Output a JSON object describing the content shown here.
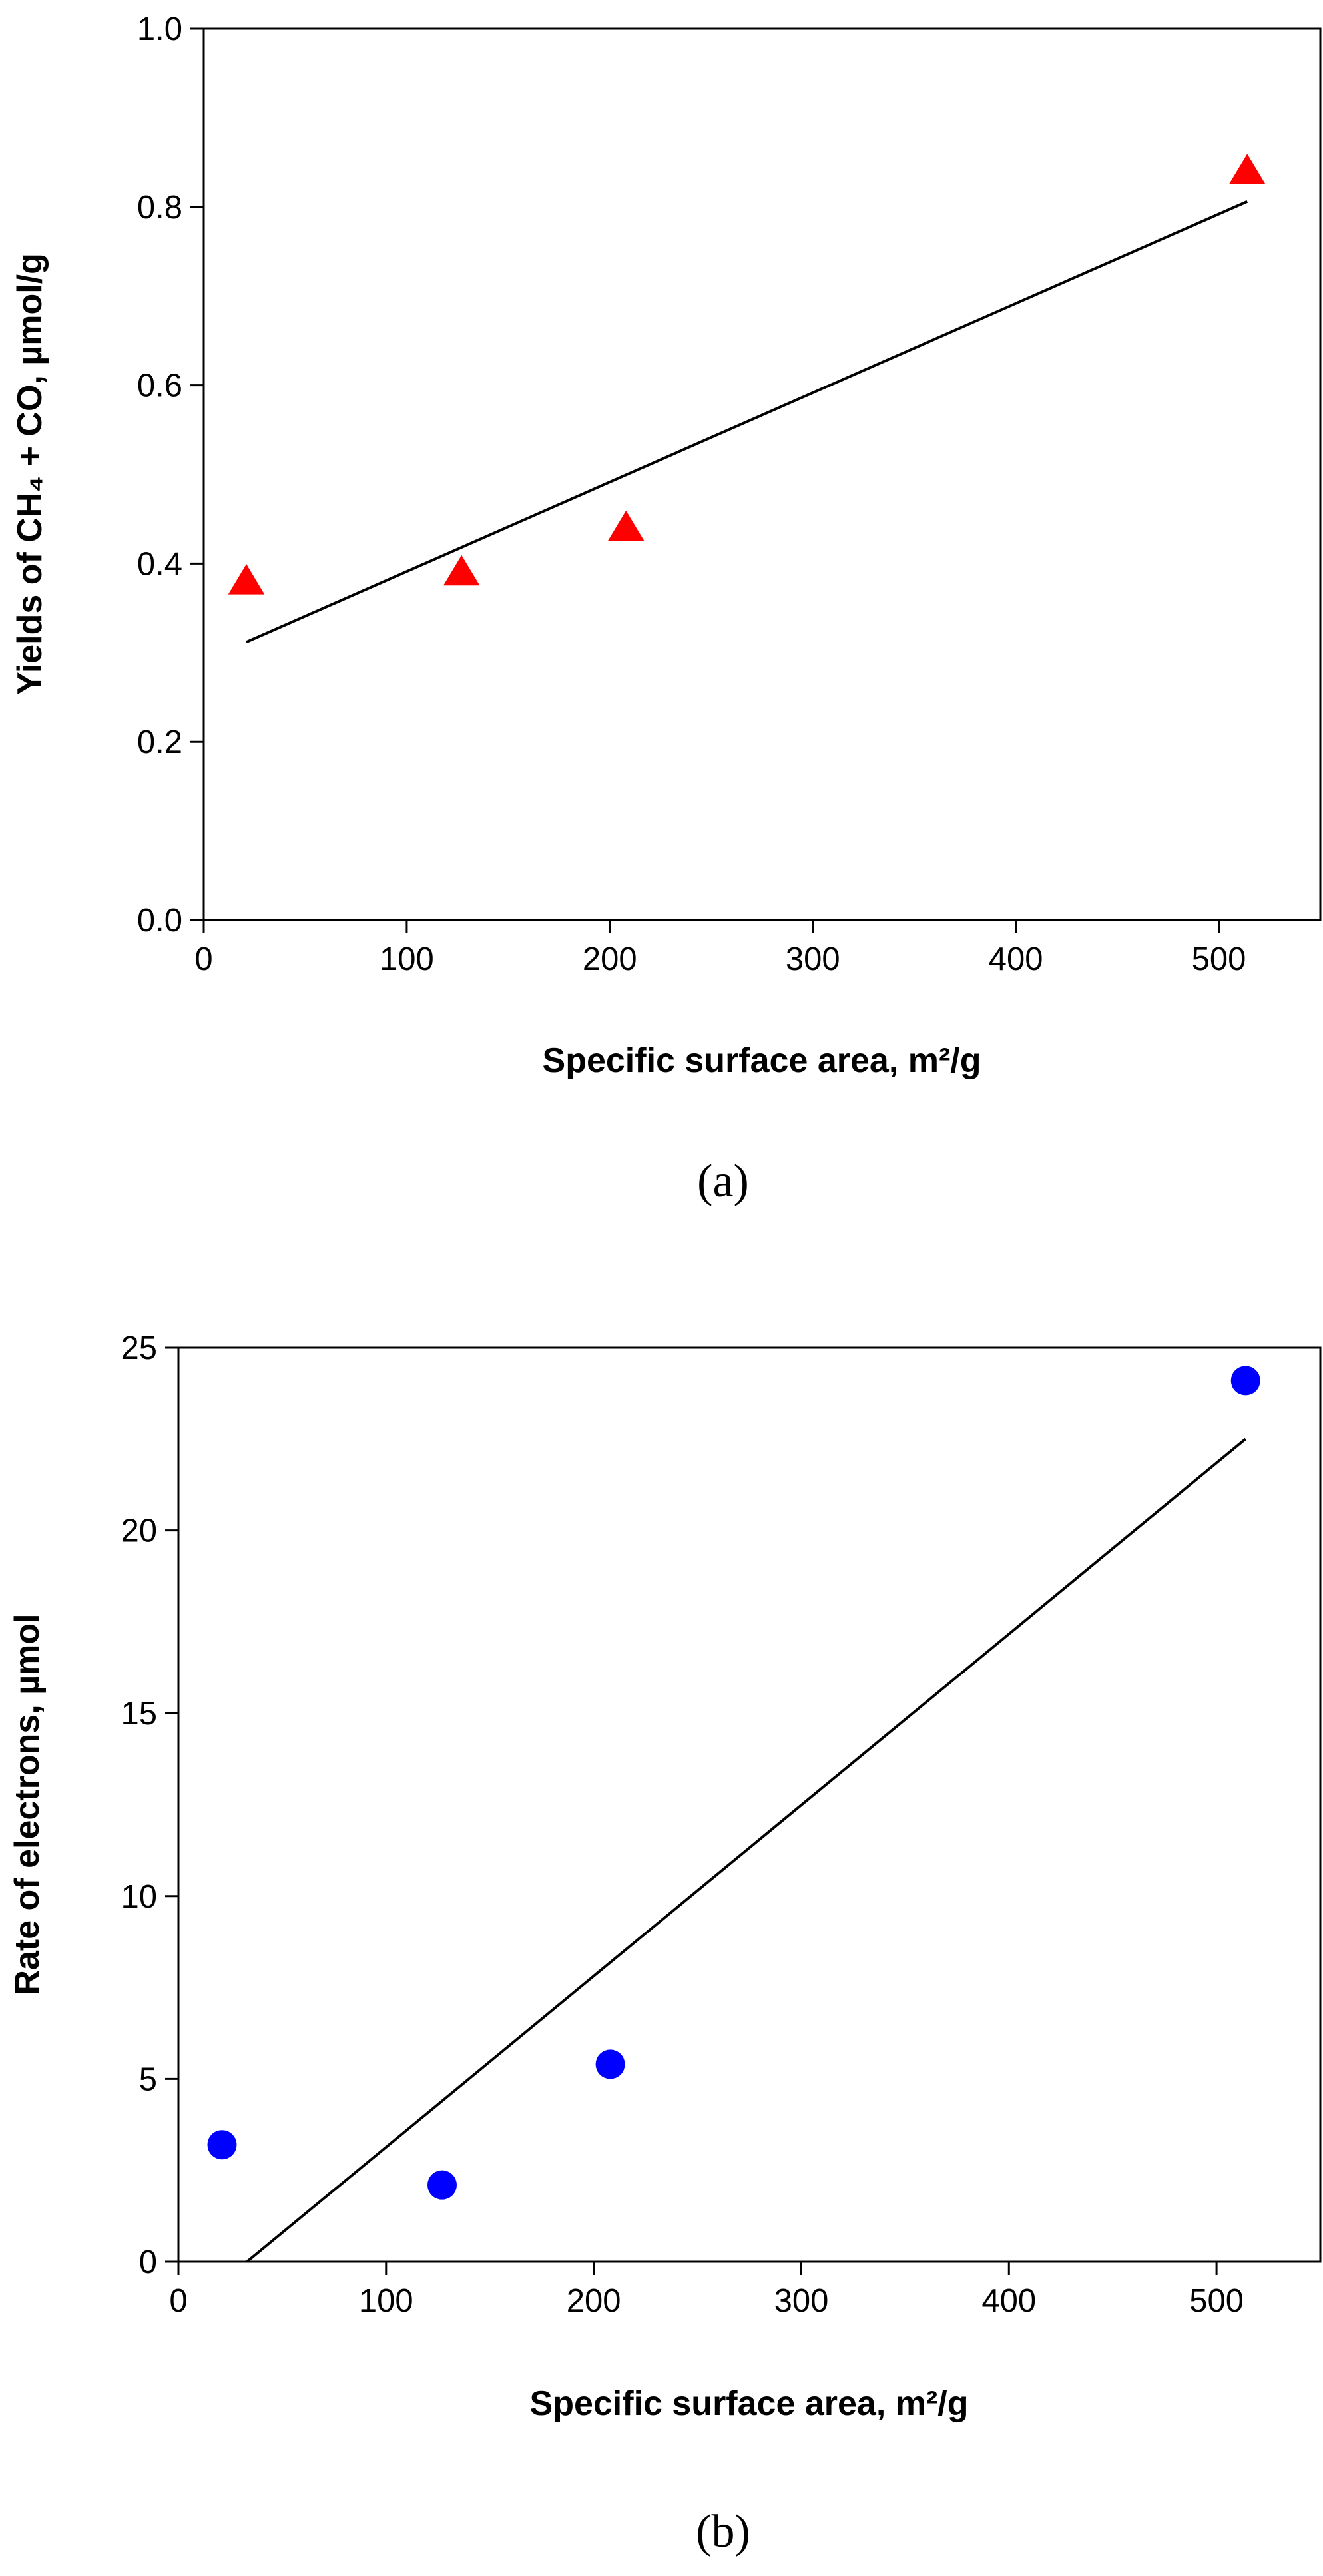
{
  "chart_data": [
    {
      "type": "scatter",
      "panel_label": "(a)",
      "xlabel": "Specific surface area, m²/g",
      "ylabel": "Yields of  CH₄ + CO, µmol/g",
      "xlim": [
        0,
        550
      ],
      "ylim": [
        0,
        1.0
      ],
      "xticks": [
        0,
        100,
        200,
        300,
        400,
        500
      ],
      "xtick_labels": [
        "0",
        "100",
        "200",
        "300",
        "400",
        "500"
      ],
      "yticks": [
        0,
        0.2,
        0.4,
        0.6,
        0.8,
        1.0
      ],
      "ytick_labels": [
        "0.0",
        "0.2",
        "0.4",
        "0.6",
        "0.8",
        "1.0"
      ],
      "grid": false,
      "marker": "triangle",
      "marker_color": "#ff0000",
      "points": [
        {
          "x": 21,
          "y": 0.38
        },
        {
          "x": 127,
          "y": 0.39
        },
        {
          "x": 208,
          "y": 0.44
        },
        {
          "x": 514,
          "y": 0.84
        }
      ],
      "fit_line": {
        "x": [
          21,
          514
        ],
        "y": [
          0.312,
          0.806
        ]
      }
    },
    {
      "type": "scatter",
      "panel_label": "(b)",
      "xlabel": "Specific surface area, m²/g",
      "ylabel": "Rate of electrons, µmol",
      "xlim": [
        0,
        550
      ],
      "ylim": [
        0,
        25
      ],
      "xticks": [
        0,
        100,
        200,
        300,
        400,
        500
      ],
      "xtick_labels": [
        "0",
        "100",
        "200",
        "300",
        "400",
        "500"
      ],
      "yticks": [
        0,
        5,
        10,
        15,
        20,
        25
      ],
      "ytick_labels": [
        "0",
        "5",
        "10",
        "15",
        "20",
        "25"
      ],
      "grid": false,
      "marker": "circle",
      "marker_color": "#0000ff",
      "points": [
        {
          "x": 21,
          "y": 3.2
        },
        {
          "x": 127,
          "y": 2.1
        },
        {
          "x": 208,
          "y": 5.4
        },
        {
          "x": 514,
          "y": 24.1
        }
      ],
      "fit_line": {
        "x": [
          33,
          514
        ],
        "y": [
          0,
          22.5
        ]
      }
    }
  ]
}
